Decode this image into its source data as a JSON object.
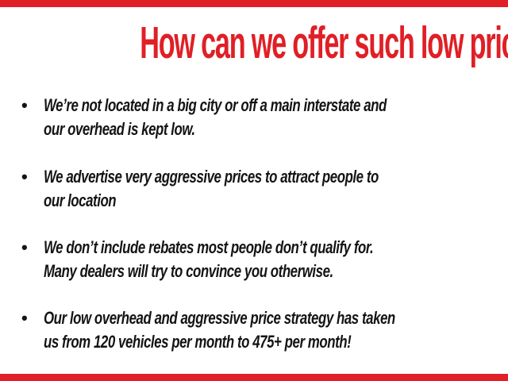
{
  "page": {
    "background": "#ffffff",
    "accent_red": "#e01f26",
    "text_black": "#141414"
  },
  "title": "How can we offer such low prices?",
  "bullets": {
    "glyph": "•",
    "items": [
      {
        "lines": [
          "We’re not located in a big city or off a main interstate and",
          "our overhead is kept low."
        ]
      },
      {
        "lines": [
          "We advertise very aggressive prices to attract people to",
          "our location"
        ]
      },
      {
        "lines": [
          "We don’t include rebates most people don’t qualify for.",
          "Many dealers will try to convince you otherwise."
        ]
      },
      {
        "lines": [
          "Our low overhead and aggressive price strategy has taken",
          "us from 120 vehicles per month to 475+ per month!"
        ]
      }
    ]
  }
}
